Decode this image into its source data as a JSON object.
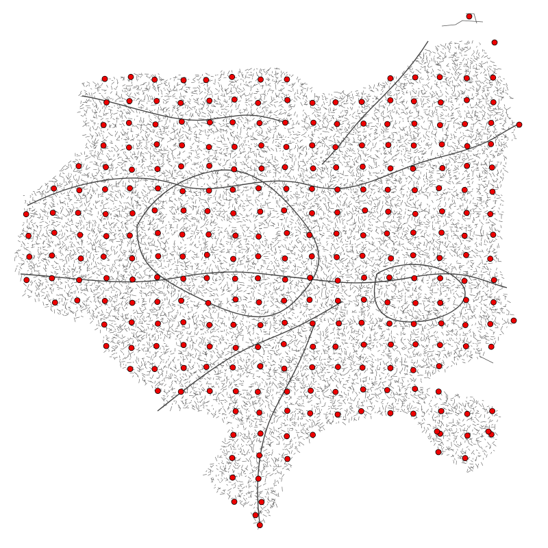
{
  "map": {
    "background_color": "#ffffff",
    "road_color": "#555555",
    "point_fill": "#ee0000",
    "point_stroke": "#000000",
    "point_count_shown": 340
  }
}
